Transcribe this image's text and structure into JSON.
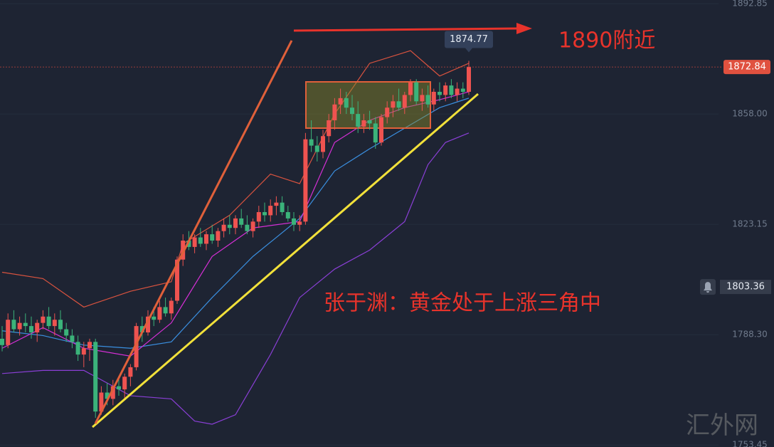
{
  "chart_data": {
    "type": "candlestick",
    "ylim": [
      1752.8,
      1894
    ],
    "yticks": [
      1892.85,
      {
        "value": 1858,
        "label": "1858.00"
      },
      1823.15,
      {
        "value": 1788.3,
        "label": "1788.30"
      },
      1753.45
    ],
    "up_color": "#ef5350",
    "down_color": "#3bb37a",
    "candles": [
      [
        1787,
        1791,
        1783,
        1785
      ],
      [
        1785,
        1795,
        1784,
        1793
      ],
      [
        1793,
        1796,
        1789,
        1790
      ],
      [
        1790,
        1794,
        1788,
        1792
      ],
      [
        1792,
        1795,
        1789,
        1791
      ],
      [
        1791,
        1794,
        1787,
        1789
      ],
      [
        1789,
        1793,
        1786,
        1792
      ],
      [
        1792,
        1796,
        1790,
        1794
      ],
      [
        1794,
        1797,
        1790,
        1791
      ],
      [
        1791,
        1795,
        1788,
        1793
      ],
      [
        1793,
        1796,
        1789,
        1790
      ],
      [
        1790,
        1792,
        1786,
        1788
      ],
      [
        1788,
        1790,
        1784,
        1786
      ],
      [
        1786,
        1788,
        1780,
        1782
      ],
      [
        1782,
        1786,
        1778,
        1784
      ],
      [
        1784,
        1787,
        1780,
        1786
      ],
      [
        1786,
        1787,
        1762,
        1764
      ],
      [
        1764,
        1772,
        1763,
        1770
      ],
      [
        1770,
        1773,
        1766,
        1768
      ],
      [
        1768,
        1774,
        1766,
        1772
      ],
      [
        1772,
        1775,
        1769,
        1771
      ],
      [
        1771,
        1776,
        1768,
        1775
      ],
      [
        1775,
        1779,
        1772,
        1778
      ],
      [
        1778,
        1792,
        1777,
        1791
      ],
      [
        1791,
        1794,
        1786,
        1789
      ],
      [
        1789,
        1796,
        1788,
        1794
      ],
      [
        1794,
        1797,
        1791,
        1793
      ],
      [
        1793,
        1799,
        1792,
        1797
      ],
      [
        1797,
        1800,
        1794,
        1795
      ],
      [
        1795,
        1800,
        1793,
        1799
      ],
      [
        1799,
        1813,
        1798,
        1812
      ],
      [
        1812,
        1820,
        1810,
        1818
      ],
      [
        1818,
        1821,
        1815,
        1816
      ],
      [
        1816,
        1820,
        1814,
        1819
      ],
      [
        1819,
        1822,
        1816,
        1817
      ],
      [
        1817,
        1821,
        1815,
        1820
      ],
      [
        1820,
        1823,
        1817,
        1818
      ],
      [
        1818,
        1822,
        1816,
        1821
      ],
      [
        1821,
        1825,
        1819,
        1823
      ],
      [
        1823,
        1826,
        1820,
        1822
      ],
      [
        1822,
        1826,
        1820,
        1825
      ],
      [
        1825,
        1828,
        1822,
        1823
      ],
      [
        1823,
        1826,
        1820,
        1821
      ],
      [
        1821,
        1825,
        1819,
        1824
      ],
      [
        1824,
        1829,
        1822,
        1827
      ],
      [
        1827,
        1830,
        1824,
        1826
      ],
      [
        1826,
        1831,
        1824,
        1829
      ],
      [
        1829,
        1832,
        1826,
        1830
      ],
      [
        1830,
        1832,
        1826,
        1827
      ],
      [
        1827,
        1829,
        1824,
        1825
      ],
      [
        1825,
        1827,
        1821,
        1823
      ],
      [
        1823,
        1826,
        1821,
        1824
      ],
      [
        1824,
        1852,
        1823,
        1850
      ],
      [
        1850,
        1856,
        1846,
        1848
      ],
      [
        1848,
        1851,
        1843,
        1846
      ],
      [
        1846,
        1853,
        1844,
        1851
      ],
      [
        1851,
        1858,
        1849,
        1856
      ],
      [
        1856,
        1863,
        1853,
        1861
      ],
      [
        1861,
        1866,
        1858,
        1863
      ],
      [
        1863,
        1865,
        1858,
        1860
      ],
      [
        1860,
        1864,
        1856,
        1858
      ],
      [
        1858,
        1862,
        1852,
        1854
      ],
      [
        1854,
        1858,
        1852,
        1856
      ],
      [
        1856,
        1859,
        1853,
        1855
      ],
      [
        1855,
        1857,
        1847,
        1849
      ],
      [
        1849,
        1858,
        1848,
        1857
      ],
      [
        1857,
        1862,
        1855,
        1860
      ],
      [
        1860,
        1864,
        1857,
        1862
      ],
      [
        1862,
        1866,
        1859,
        1860
      ],
      [
        1860,
        1865,
        1858,
        1864
      ],
      [
        1864,
        1869,
        1862,
        1868
      ],
      [
        1868,
        1869,
        1861,
        1862
      ],
      [
        1862,
        1866,
        1859,
        1864
      ],
      [
        1864,
        1867,
        1860,
        1861
      ],
      [
        1861,
        1866,
        1859,
        1865
      ],
      [
        1865,
        1868,
        1862,
        1864
      ],
      [
        1864,
        1868,
        1862,
        1867
      ],
      [
        1867,
        1869,
        1863,
        1864
      ],
      [
        1864,
        1868,
        1862,
        1866
      ],
      [
        1866,
        1868,
        1863,
        1865
      ],
      [
        1865,
        1874.77,
        1864,
        1872.84
      ]
    ],
    "overlays": [
      {
        "color": "#d9533f",
        "x": [
          0,
          7,
          14,
          22,
          29,
          31,
          39,
          46,
          51,
          57,
          63,
          70,
          75,
          80
        ],
        "values": [
          1808,
          1806,
          1797,
          1802,
          1805,
          1817,
          1826,
          1839,
          1836,
          1858,
          1874,
          1878,
          1870,
          1874
        ]
      },
      {
        "color": "#8a3fd6",
        "x": [
          0,
          7,
          14,
          22,
          29,
          33,
          36,
          40,
          46,
          51,
          57,
          63,
          69,
          73,
          76,
          80
        ],
        "values": [
          1776,
          1777,
          1777,
          1769,
          1768,
          1761,
          1760,
          1763,
          1782,
          1800,
          1809,
          1815,
          1824,
          1842,
          1849,
          1852
        ]
      },
      {
        "color": "#3a8fe0",
        "x": [
          0,
          7,
          14,
          22,
          29,
          36,
          43,
          51,
          57,
          63,
          69,
          75,
          80
        ],
        "values": [
          1789.5,
          1788,
          1785,
          1784,
          1786,
          1800,
          1813,
          1825,
          1840,
          1847,
          1853.5,
          1860,
          1863
        ]
      },
      {
        "color": "#d62fd6",
        "x": [
          0,
          7,
          14,
          22,
          29,
          36,
          43,
          51,
          57,
          63,
          69,
          75,
          80
        ],
        "values": [
          1784,
          1790.5,
          1784,
          1781.5,
          1792,
          1813,
          1822,
          1824,
          1849,
          1856,
          1860,
          1862.5,
          1865
        ]
      }
    ],
    "alert_price": 1803.36,
    "annotations": [
      "1890附近",
      "张于渊：黄金处于上涨三角中"
    ],
    "watermark": "汇外网"
  }
}
